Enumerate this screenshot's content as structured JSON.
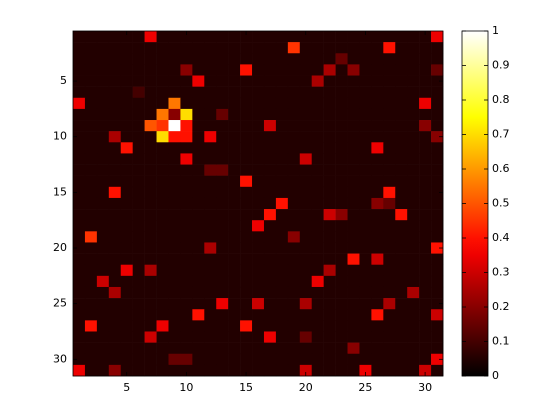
{
  "chart_data": {
    "type": "heatmap",
    "colormap": "hot",
    "xlim": [
      0.5,
      31.5
    ],
    "ylim": [
      0.5,
      31.5
    ],
    "clim": [
      0,
      1
    ],
    "xticks": [
      5,
      10,
      15,
      20,
      25,
      30
    ],
    "yticks": [
      5,
      10,
      15,
      20,
      25,
      30
    ],
    "colorbar_ticks": [
      0,
      0.1,
      0.2,
      0.3,
      0.4,
      0.5,
      0.6,
      0.7,
      0.8,
      0.9,
      1
    ],
    "z": [
      [
        0.05,
        0.05,
        0.05,
        0.05,
        0.05,
        0.05,
        0.35,
        0.05,
        0.05,
        0.05,
        0.05,
        0.05,
        0.05,
        0.05,
        0.05,
        0.05,
        0.05,
        0.05,
        0.05,
        0.05,
        0.05,
        0.05,
        0.05,
        0.05,
        0.05,
        0.05,
        0.05,
        0.05,
        0.05,
        0.05,
        0.35
      ],
      [
        0.05,
        0.05,
        0.05,
        0.05,
        0.05,
        0.05,
        0.05,
        0.05,
        0.05,
        0.05,
        0.05,
        0.05,
        0.05,
        0.05,
        0.05,
        0.05,
        0.05,
        0.05,
        0.45,
        0.05,
        0.05,
        0.05,
        0.05,
        0.05,
        0.05,
        0.05,
        0.4,
        0.05,
        0.05,
        0.05,
        0.05
      ],
      [
        0.05,
        0.05,
        0.05,
        0.05,
        0.05,
        0.05,
        0.05,
        0.05,
        0.05,
        0.05,
        0.05,
        0.05,
        0.05,
        0.05,
        0.05,
        0.05,
        0.05,
        0.05,
        0.05,
        0.05,
        0.05,
        0.05,
        0.15,
        0.05,
        0.05,
        0.05,
        0.05,
        0.05,
        0.05,
        0.05,
        0.05
      ],
      [
        0.05,
        0.05,
        0.05,
        0.05,
        0.05,
        0.05,
        0.05,
        0.05,
        0.05,
        0.2,
        0.05,
        0.05,
        0.05,
        0.05,
        0.4,
        0.05,
        0.05,
        0.05,
        0.05,
        0.05,
        0.05,
        0.25,
        0.05,
        0.2,
        0.05,
        0.05,
        0.05,
        0.05,
        0.05,
        0.05,
        0.15
      ],
      [
        0.05,
        0.05,
        0.05,
        0.05,
        0.05,
        0.05,
        0.05,
        0.05,
        0.05,
        0.05,
        0.35,
        0.05,
        0.05,
        0.05,
        0.05,
        0.05,
        0.05,
        0.05,
        0.05,
        0.05,
        0.25,
        0.05,
        0.05,
        0.05,
        0.05,
        0.05,
        0.05,
        0.05,
        0.05,
        0.05,
        0.05
      ],
      [
        0.05,
        0.05,
        0.05,
        0.05,
        0.05,
        0.1,
        0.05,
        0.05,
        0.05,
        0.05,
        0.05,
        0.05,
        0.05,
        0.05,
        0.05,
        0.05,
        0.05,
        0.05,
        0.05,
        0.05,
        0.05,
        0.05,
        0.05,
        0.05,
        0.05,
        0.05,
        0.05,
        0.05,
        0.05,
        0.05,
        0.05
      ],
      [
        0.35,
        0.05,
        0.05,
        0.05,
        0.05,
        0.05,
        0.05,
        0.05,
        0.55,
        0.05,
        0.05,
        0.05,
        0.05,
        0.05,
        0.05,
        0.05,
        0.05,
        0.05,
        0.05,
        0.05,
        0.05,
        0.05,
        0.05,
        0.05,
        0.05,
        0.05,
        0.05,
        0.05,
        0.05,
        0.35,
        0.05
      ],
      [
        0.05,
        0.05,
        0.05,
        0.05,
        0.05,
        0.05,
        0.05,
        0.55,
        0.2,
        0.7,
        0.05,
        0.05,
        0.15,
        0.05,
        0.05,
        0.05,
        0.05,
        0.05,
        0.05,
        0.05,
        0.05,
        0.05,
        0.05,
        0.05,
        0.05,
        0.05,
        0.05,
        0.05,
        0.05,
        0.05,
        0.05
      ],
      [
        0.05,
        0.05,
        0.05,
        0.05,
        0.05,
        0.05,
        0.5,
        0.45,
        1,
        0.4,
        0.05,
        0.05,
        0.05,
        0.05,
        0.05,
        0.05,
        0.3,
        0.05,
        0.05,
        0.05,
        0.05,
        0.05,
        0.05,
        0.05,
        0.05,
        0.05,
        0.05,
        0.05,
        0.05,
        0.2,
        0.05
      ],
      [
        0.05,
        0.05,
        0.05,
        0.25,
        0.05,
        0.05,
        0.05,
        0.7,
        0.4,
        0.4,
        0.05,
        0.35,
        0.05,
        0.05,
        0.05,
        0.05,
        0.05,
        0.05,
        0.05,
        0.05,
        0.05,
        0.05,
        0.05,
        0.05,
        0.05,
        0.05,
        0.05,
        0.05,
        0.05,
        0.05,
        0.2
      ],
      [
        0.05,
        0.05,
        0.05,
        0.05,
        0.4,
        0.05,
        0.05,
        0.05,
        0.05,
        0.05,
        0.05,
        0.05,
        0.05,
        0.05,
        0.05,
        0.05,
        0.05,
        0.05,
        0.05,
        0.05,
        0.05,
        0.05,
        0.05,
        0.05,
        0.05,
        0.35,
        0.05,
        0.05,
        0.05,
        0.05,
        0.05
      ],
      [
        0.05,
        0.05,
        0.05,
        0.05,
        0.05,
        0.05,
        0.05,
        0.05,
        0.05,
        0.35,
        0.05,
        0.05,
        0.05,
        0.05,
        0.05,
        0.05,
        0.05,
        0.05,
        0.05,
        0.3,
        0.05,
        0.05,
        0.05,
        0.05,
        0.05,
        0.05,
        0.05,
        0.05,
        0.05,
        0.05,
        0.05
      ],
      [
        0.05,
        0.05,
        0.05,
        0.05,
        0.05,
        0.05,
        0.05,
        0.05,
        0.05,
        0.05,
        0.05,
        0.15,
        0.15,
        0.05,
        0.05,
        0.05,
        0.05,
        0.05,
        0.05,
        0.05,
        0.05,
        0.05,
        0.05,
        0.05,
        0.05,
        0.05,
        0.05,
        0.05,
        0.05,
        0.05,
        0.05
      ],
      [
        0.05,
        0.05,
        0.05,
        0.05,
        0.05,
        0.05,
        0.05,
        0.05,
        0.05,
        0.05,
        0.05,
        0.05,
        0.05,
        0.05,
        0.4,
        0.05,
        0.05,
        0.05,
        0.05,
        0.05,
        0.05,
        0.05,
        0.05,
        0.05,
        0.05,
        0.05,
        0.05,
        0.05,
        0.05,
        0.05,
        0.05
      ],
      [
        0.05,
        0.05,
        0.05,
        0.4,
        0.05,
        0.05,
        0.05,
        0.05,
        0.05,
        0.05,
        0.05,
        0.05,
        0.05,
        0.05,
        0.05,
        0.05,
        0.05,
        0.05,
        0.05,
        0.05,
        0.05,
        0.05,
        0.05,
        0.05,
        0.05,
        0.05,
        0.4,
        0.05,
        0.05,
        0.05,
        0.05
      ],
      [
        0.05,
        0.05,
        0.05,
        0.05,
        0.05,
        0.05,
        0.05,
        0.05,
        0.05,
        0.05,
        0.05,
        0.05,
        0.05,
        0.05,
        0.05,
        0.05,
        0.05,
        0.4,
        0.05,
        0.05,
        0.05,
        0.05,
        0.05,
        0.05,
        0.05,
        0.2,
        0.15,
        0.05,
        0.05,
        0.05,
        0.05
      ],
      [
        0.05,
        0.05,
        0.05,
        0.05,
        0.05,
        0.05,
        0.05,
        0.05,
        0.05,
        0.05,
        0.05,
        0.05,
        0.05,
        0.05,
        0.05,
        0.05,
        0.4,
        0.05,
        0.05,
        0.05,
        0.05,
        0.3,
        0.2,
        0.05,
        0.05,
        0.05,
        0.05,
        0.4,
        0.05,
        0.05,
        0.05
      ],
      [
        0.05,
        0.05,
        0.05,
        0.05,
        0.05,
        0.05,
        0.05,
        0.05,
        0.05,
        0.05,
        0.05,
        0.05,
        0.05,
        0.05,
        0.05,
        0.35,
        0.05,
        0.05,
        0.05,
        0.05,
        0.05,
        0.05,
        0.05,
        0.05,
        0.05,
        0.05,
        0.05,
        0.05,
        0.05,
        0.05,
        0.05
      ],
      [
        0.05,
        0.45,
        0.05,
        0.05,
        0.05,
        0.05,
        0.05,
        0.05,
        0.05,
        0.05,
        0.05,
        0.05,
        0.05,
        0.05,
        0.05,
        0.05,
        0.05,
        0.05,
        0.2,
        0.05,
        0.05,
        0.05,
        0.05,
        0.05,
        0.05,
        0.05,
        0.05,
        0.05,
        0.05,
        0.05,
        0.05
      ],
      [
        0.05,
        0.05,
        0.05,
        0.05,
        0.05,
        0.05,
        0.05,
        0.05,
        0.05,
        0.05,
        0.05,
        0.25,
        0.05,
        0.05,
        0.05,
        0.05,
        0.05,
        0.05,
        0.05,
        0.05,
        0.05,
        0.05,
        0.05,
        0.05,
        0.05,
        0.05,
        0.05,
        0.05,
        0.05,
        0.05,
        0.4
      ],
      [
        0.05,
        0.05,
        0.05,
        0.05,
        0.05,
        0.05,
        0.05,
        0.05,
        0.05,
        0.05,
        0.05,
        0.05,
        0.05,
        0.05,
        0.05,
        0.05,
        0.05,
        0.05,
        0.05,
        0.05,
        0.05,
        0.05,
        0.05,
        0.4,
        0.05,
        0.3,
        0.05,
        0.05,
        0.05,
        0.05,
        0.05
      ],
      [
        0.05,
        0.05,
        0.05,
        0.05,
        0.35,
        0.05,
        0.25,
        0.05,
        0.05,
        0.05,
        0.05,
        0.05,
        0.05,
        0.05,
        0.05,
        0.05,
        0.05,
        0.05,
        0.05,
        0.05,
        0.05,
        0.25,
        0.05,
        0.05,
        0.05,
        0.05,
        0.05,
        0.05,
        0.05,
        0.05,
        0.05
      ],
      [
        0.05,
        0.05,
        0.3,
        0.05,
        0.05,
        0.05,
        0.05,
        0.05,
        0.05,
        0.05,
        0.05,
        0.05,
        0.05,
        0.05,
        0.05,
        0.05,
        0.05,
        0.05,
        0.05,
        0.05,
        0.35,
        0.05,
        0.05,
        0.05,
        0.05,
        0.05,
        0.05,
        0.05,
        0.05,
        0.05,
        0.05
      ],
      [
        0.05,
        0.05,
        0.05,
        0.25,
        0.05,
        0.05,
        0.05,
        0.05,
        0.05,
        0.05,
        0.05,
        0.05,
        0.05,
        0.05,
        0.05,
        0.05,
        0.05,
        0.05,
        0.05,
        0.05,
        0.05,
        0.05,
        0.05,
        0.05,
        0.05,
        0.05,
        0.05,
        0.05,
        0.25,
        0.05,
        0.05
      ],
      [
        0.05,
        0.05,
        0.05,
        0.05,
        0.05,
        0.05,
        0.05,
        0.05,
        0.05,
        0.05,
        0.05,
        0.05,
        0.35,
        0.05,
        0.05,
        0.3,
        0.05,
        0.05,
        0.05,
        0.25,
        0.05,
        0.05,
        0.05,
        0.05,
        0.05,
        0.05,
        0.25,
        0.05,
        0.05,
        0.05,
        0.05
      ],
      [
        0.05,
        0.05,
        0.05,
        0.05,
        0.05,
        0.05,
        0.05,
        0.05,
        0.05,
        0.05,
        0.4,
        0.05,
        0.05,
        0.05,
        0.05,
        0.05,
        0.05,
        0.05,
        0.05,
        0.05,
        0.05,
        0.05,
        0.05,
        0.05,
        0.05,
        0.4,
        0.05,
        0.05,
        0.05,
        0.05,
        0.3
      ],
      [
        0.05,
        0.4,
        0.05,
        0.05,
        0.05,
        0.05,
        0.05,
        0.35,
        0.05,
        0.05,
        0.05,
        0.05,
        0.05,
        0.05,
        0.4,
        0.05,
        0.05,
        0.05,
        0.05,
        0.05,
        0.05,
        0.05,
        0.05,
        0.05,
        0.05,
        0.05,
        0.05,
        0.05,
        0.05,
        0.05,
        0.05
      ],
      [
        0.05,
        0.05,
        0.05,
        0.05,
        0.05,
        0.05,
        0.3,
        0.05,
        0.05,
        0.05,
        0.05,
        0.05,
        0.05,
        0.05,
        0.05,
        0.05,
        0.35,
        0.05,
        0.05,
        0.15,
        0.05,
        0.05,
        0.05,
        0.05,
        0.05,
        0.05,
        0.05,
        0.05,
        0.05,
        0.05,
        0.05
      ],
      [
        0.05,
        0.05,
        0.05,
        0.05,
        0.05,
        0.05,
        0.05,
        0.05,
        0.05,
        0.05,
        0.05,
        0.05,
        0.05,
        0.05,
        0.05,
        0.05,
        0.05,
        0.05,
        0.05,
        0.05,
        0.05,
        0.05,
        0.05,
        0.2,
        0.05,
        0.05,
        0.05,
        0.05,
        0.05,
        0.05,
        0.05
      ],
      [
        0.05,
        0.05,
        0.05,
        0.05,
        0.05,
        0.05,
        0.05,
        0.05,
        0.15,
        0.15,
        0.05,
        0.05,
        0.05,
        0.05,
        0.05,
        0.05,
        0.05,
        0.05,
        0.05,
        0.05,
        0.05,
        0.05,
        0.05,
        0.05,
        0.05,
        0.05,
        0.05,
        0.05,
        0.05,
        0.05,
        0.35
      ],
      [
        0.35,
        0.05,
        0.05,
        0.2,
        0.05,
        0.05,
        0.05,
        0.05,
        0.05,
        0.05,
        0.05,
        0.05,
        0.05,
        0.05,
        0.05,
        0.05,
        0.05,
        0.05,
        0.05,
        0.3,
        0.05,
        0.05,
        0.05,
        0.05,
        0.35,
        0.05,
        0.05,
        0.05,
        0.05,
        0.3,
        0.05
      ]
    ]
  }
}
